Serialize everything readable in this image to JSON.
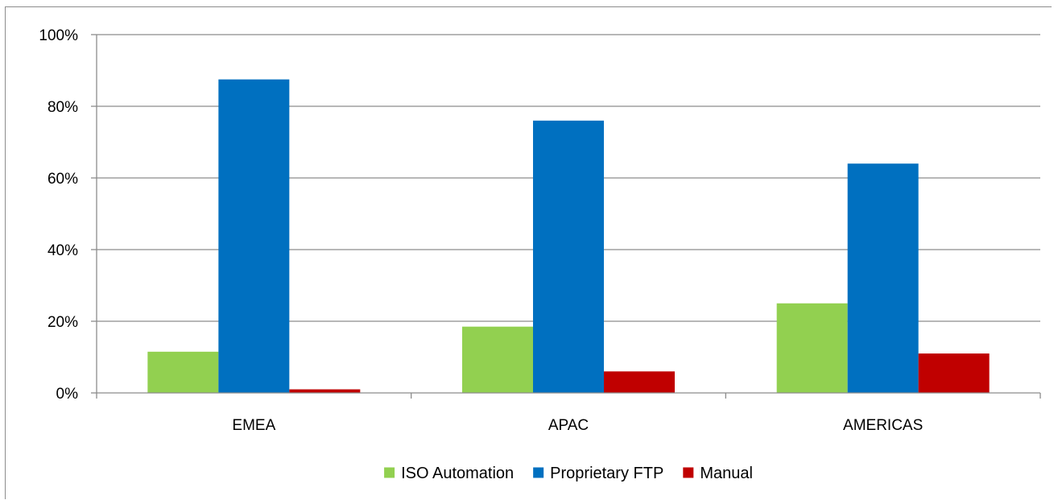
{
  "chart_data": {
    "type": "bar",
    "title": "",
    "xlabel": "",
    "ylabel": "",
    "categories": [
      "EMEA",
      "APAC",
      "AMERICAS"
    ],
    "series": [
      {
        "name": "ISO Automation",
        "color": "#92d050",
        "values": [
          11.5,
          18.5,
          25
        ]
      },
      {
        "name": "Proprietary FTP",
        "color": "#0070c0",
        "values": [
          87.5,
          76,
          64
        ]
      },
      {
        "name": "Manual",
        "color": "#c00000",
        "values": [
          1,
          6,
          11
        ]
      }
    ],
    "ylim": [
      0,
      100
    ],
    "yticks": [
      0,
      20,
      40,
      60,
      80,
      100
    ],
    "ytick_labels": [
      "0%",
      "20%",
      "40%",
      "60%",
      "80%",
      "100%"
    ],
    "grid": true,
    "legend_position": "bottom"
  }
}
